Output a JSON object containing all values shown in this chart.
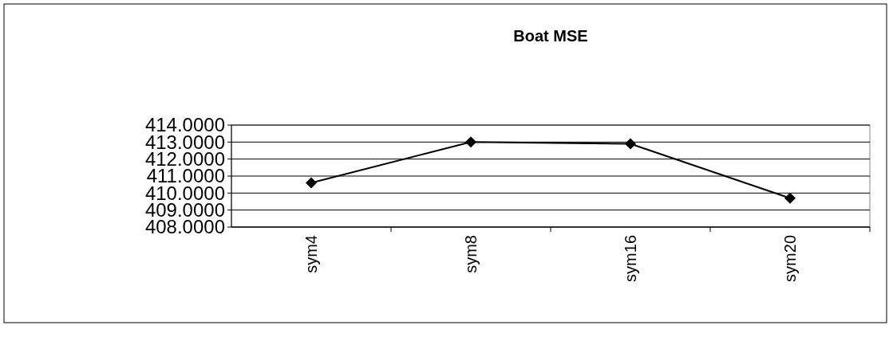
{
  "chart_data": {
    "type": "line",
    "title": "Boat MSE",
    "categories": [
      "sym4",
      "sym8",
      "sym16",
      "sym20"
    ],
    "series": [
      {
        "color": "#000000",
        "values": [
          410.6,
          413.0,
          412.9,
          409.7
        ]
      }
    ],
    "ylim": [
      408,
      414
    ],
    "yticks": [
      {
        "value": 408,
        "label": "408.0000"
      },
      {
        "value": 409,
        "label": "409.0000"
      },
      {
        "value": 410,
        "label": "410.0000"
      },
      {
        "value": 411,
        "label": "411.0000"
      },
      {
        "value": 412,
        "label": "412.0000"
      },
      {
        "value": 413,
        "label": "413.0000"
      },
      {
        "value": 414,
        "label": "414.0000"
      }
    ],
    "grid": "y",
    "marker": "diamond",
    "line_style": "solid"
  }
}
